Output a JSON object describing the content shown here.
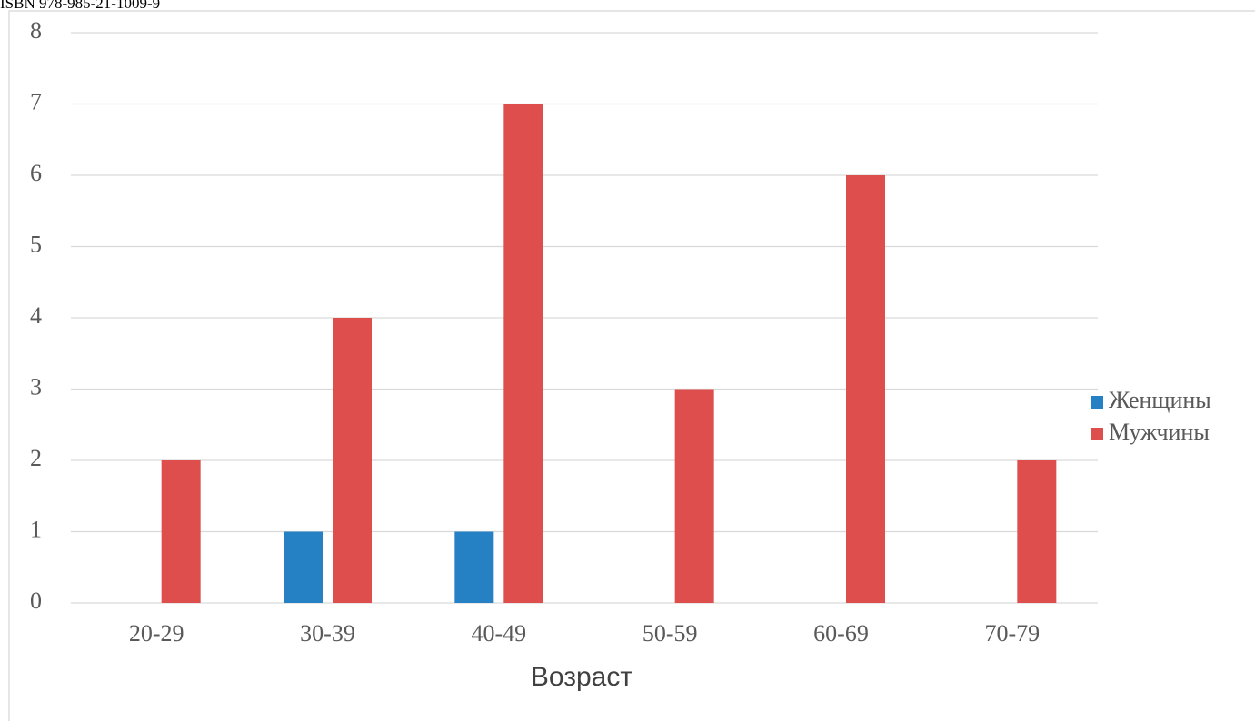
{
  "chart_data": {
    "type": "bar",
    "annotation": "ISBN 978-985-21-1009-9",
    "x_label": "Возраст",
    "categories": [
      "20-29",
      "30-39",
      "40-49",
      "50-59",
      "60-69",
      "70-79"
    ],
    "series": [
      {
        "name": "Женщины",
        "color": "#2581c4",
        "values": [
          0,
          1,
          1,
          0,
          0,
          0
        ]
      },
      {
        "name": "Мужчины",
        "color": "#dd4e4d",
        "values": [
          2,
          4,
          7,
          3,
          6,
          2
        ]
      }
    ],
    "ylim": [
      0,
      8
    ],
    "yticks": [
      0,
      1,
      2,
      3,
      4,
      5,
      6,
      7,
      8
    ],
    "grid": true,
    "legend": "right"
  }
}
